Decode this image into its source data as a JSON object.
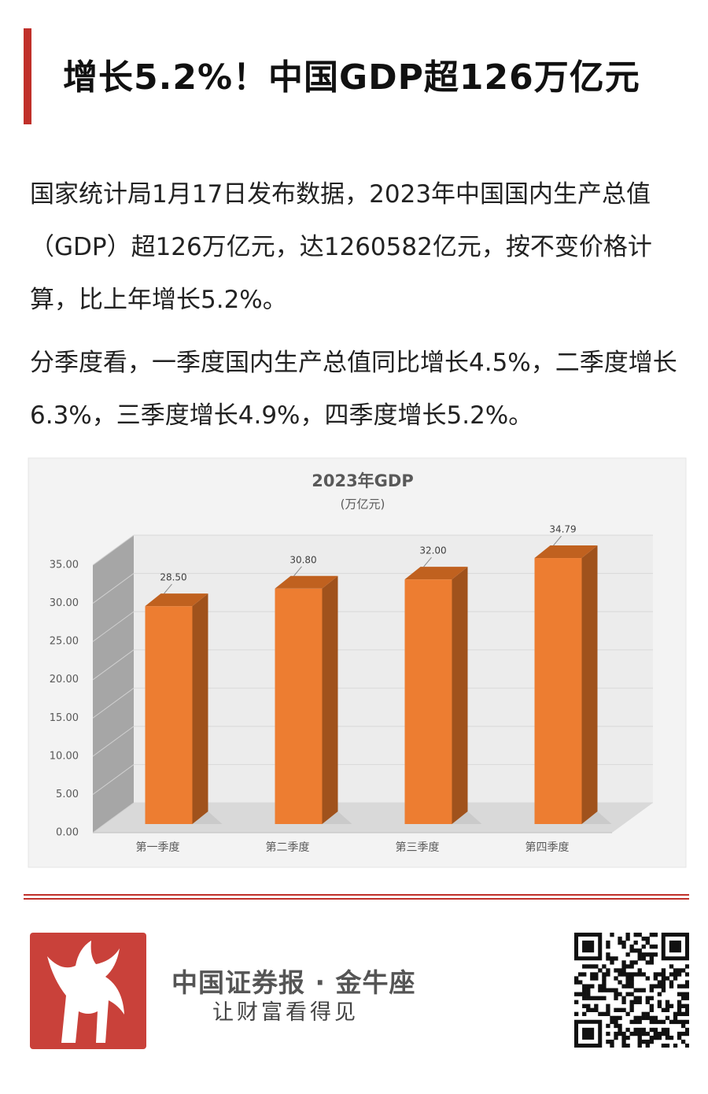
{
  "header": {
    "title": "增长5.2%！中国GDP超126万亿元"
  },
  "paragraphs": [
    "国家统计局1月17日发布数据，2023年中国国内生产总值（GDP）超126万亿元，达1260582亿元，按不变价格计算，比上年增长5.2%。",
    "分季度看，一季度国内生产总值同比增长4.5%，二季度增长6.3%，三季度增长4.9%，四季度增长5.2%。"
  ],
  "chart_data": {
    "type": "bar3d",
    "title": "2023年GDP",
    "subtitle": "(万亿元)",
    "categories": [
      "第一季度",
      "第二季度",
      "第三季度",
      "第四季度"
    ],
    "values": [
      28.5,
      30.8,
      32.0,
      34.79
    ],
    "value_labels": [
      "28.50",
      "30.80",
      "32.00",
      "34.79"
    ],
    "color": "#ed7d31",
    "ylim": [
      0,
      35
    ],
    "yticks": [
      {
        "value": 0,
        "label": "0.00"
      },
      {
        "value": 5,
        "label": "5.00"
      },
      {
        "value": 10,
        "label": "10.00"
      },
      {
        "value": 15,
        "label": "15.00"
      },
      {
        "value": 20,
        "label": "20.00"
      },
      {
        "value": 25,
        "label": "25.00"
      },
      {
        "value": 30,
        "label": "30.00"
      },
      {
        "value": 35,
        "label": "35.00"
      }
    ],
    "grid": true
  },
  "footer": {
    "brand": "中国证券报 · 金牛座",
    "slogan": "让财富看得见"
  }
}
